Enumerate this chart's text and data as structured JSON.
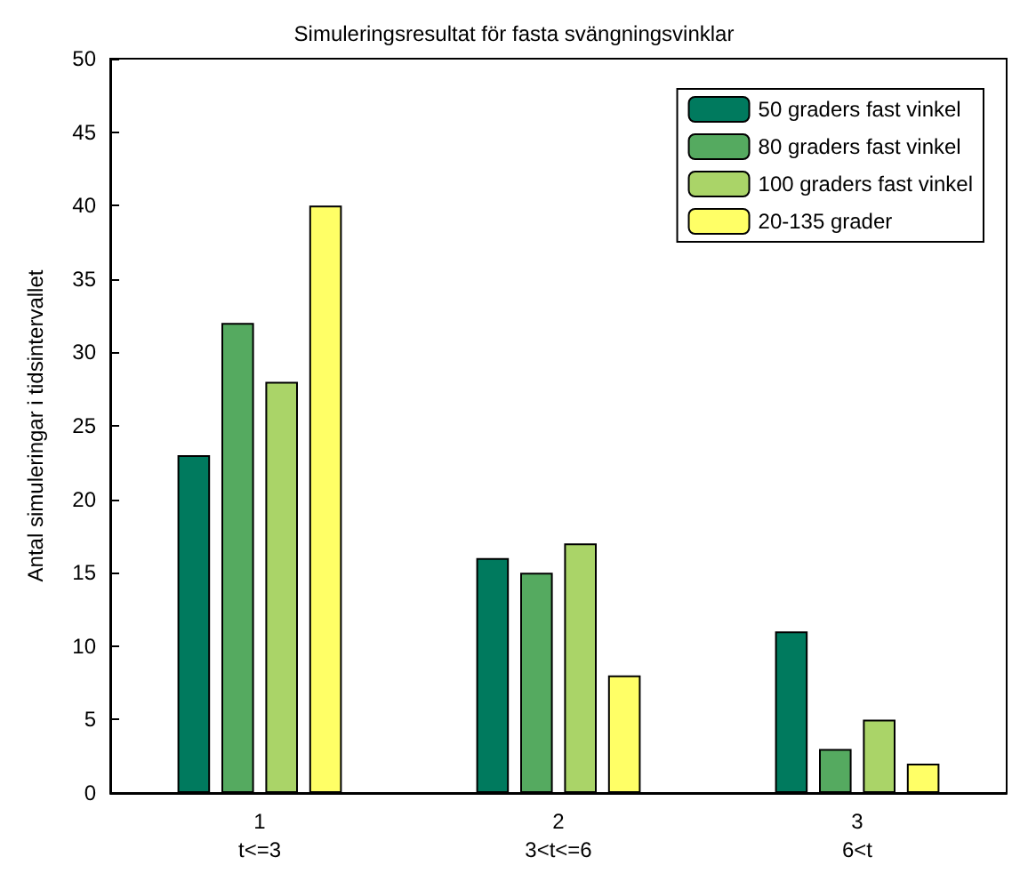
{
  "chart_data": {
    "type": "bar",
    "title": "Simuleringsresultat för fasta svängningsvinklar",
    "ylabel": "Antal simuleringar i tidsintervallet",
    "categories": [
      "1\nt<=3",
      "2\n3<t<=6",
      "3\n6<t"
    ],
    "series": [
      {
        "name": "50 graders fast vinkel",
        "color": "#007a5e",
        "values": [
          23,
          16,
          11
        ]
      },
      {
        "name": "80 graders fast vinkel",
        "color": "#55aa60",
        "values": [
          32,
          15,
          3
        ]
      },
      {
        "name": "100 graders fast vinkel",
        "color": "#aad468",
        "values": [
          28,
          17,
          5
        ]
      },
      {
        "name": "20-135 grader",
        "color": "#ffff66",
        "values": [
          40,
          8,
          2
        ]
      }
    ],
    "ylim": [
      0,
      50
    ],
    "yticks": [
      0,
      5,
      10,
      15,
      20,
      25,
      30,
      35,
      40,
      45,
      50
    ],
    "grid": false,
    "legend": "top right"
  }
}
